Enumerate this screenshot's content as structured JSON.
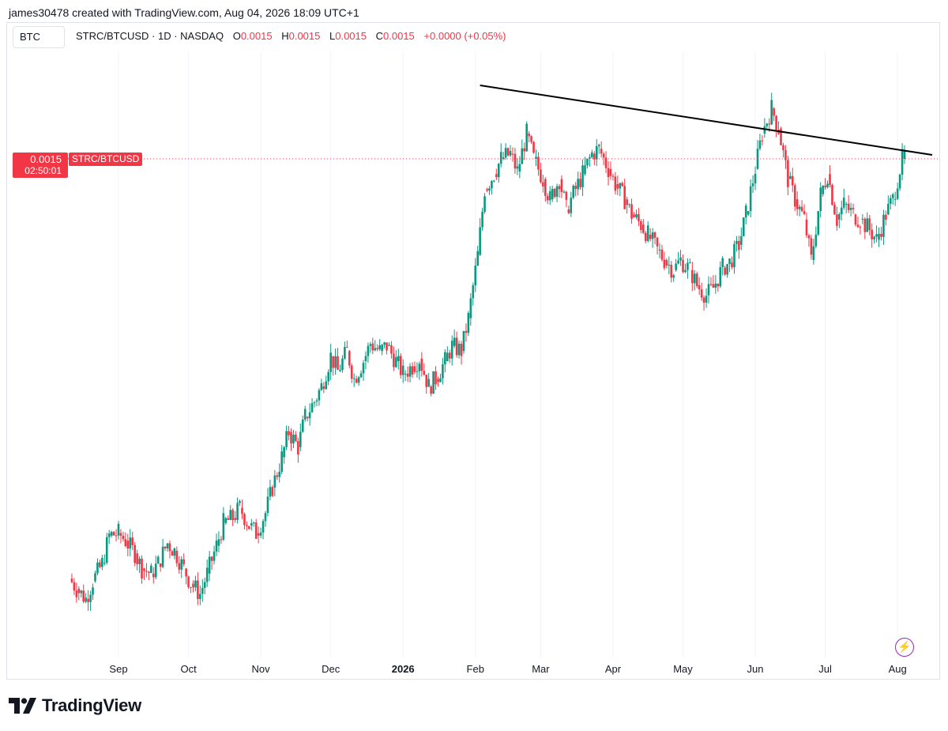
{
  "header": {
    "created_by": "james30478 created with TradingView.com, Aug 04, 2026 18:09 UTC+1"
  },
  "symbol_box": {
    "label": "BTC"
  },
  "legend": {
    "title": "STRC/BTCUSD · 1D · NASDAQ",
    "o_label": "O",
    "o_value": "0.0015",
    "h_label": "H",
    "h_value": "0.0015",
    "l_label": "L",
    "l_value": "0.0015",
    "c_label": "C",
    "c_value": "0.0015",
    "change": "+0.0000 (+0.05%)"
  },
  "price_tag": {
    "price": "0.0015",
    "countdown": "02:50:01",
    "name": "STRC/BTCUSD"
  },
  "colors": {
    "up": "#089981",
    "down": "#f23645",
    "grid": "#f0f3fa",
    "trendline": "#000000"
  },
  "branding": {
    "name": "TradingView",
    "icon": "tradingview-logo-icon"
  },
  "chart_data": {
    "type": "candlestick",
    "title": "STRC/BTCUSD · 1D · NASDAQ",
    "x_tick_labels": [
      "Sep",
      "Oct",
      "Nov",
      "Dec",
      "2026",
      "Feb",
      "Mar",
      "Apr",
      "May",
      "Jun",
      "Jul",
      "Aug"
    ],
    "last_price": 0.0015,
    "trendline": {
      "from": "2026-02-03",
      "to": "2026-08-05"
    },
    "series": [
      {
        "ohlc_close_path": [
          [
            "2025-08-11",
            0.00067
          ],
          [
            "2025-08-14",
            0.00065
          ],
          [
            "2025-08-18",
            0.00063
          ],
          [
            "2025-08-21",
            0.000665
          ],
          [
            "2025-08-25",
            0.0007
          ],
          [
            "2025-08-28",
            0.000755
          ],
          [
            "2025-09-01",
            0.00076
          ],
          [
            "2025-09-04",
            0.000745
          ],
          [
            "2025-09-08",
            0.00072
          ],
          [
            "2025-09-11",
            0.00069
          ],
          [
            "2025-09-15",
            0.00068
          ],
          [
            "2025-09-18",
            0.0007
          ],
          [
            "2025-09-22",
            0.00074
          ],
          [
            "2025-09-25",
            0.000725
          ],
          [
            "2025-09-29",
            0.00069
          ],
          [
            "2025-10-02",
            0.00066
          ],
          [
            "2025-10-06",
            0.00064
          ],
          [
            "2025-10-09",
            0.00068
          ],
          [
            "2025-10-13",
            0.000735
          ],
          [
            "2025-10-16",
            0.00078
          ],
          [
            "2025-10-20",
            0.00079
          ],
          [
            "2025-10-23",
            0.00081
          ],
          [
            "2025-10-27",
            0.000775
          ],
          [
            "2025-10-30",
            0.00076
          ],
          [
            "2025-11-03",
            0.0008
          ],
          [
            "2025-11-06",
            0.00085
          ],
          [
            "2025-11-10",
            0.00091
          ],
          [
            "2025-11-13",
            0.00096
          ],
          [
            "2025-11-17",
            0.00093
          ],
          [
            "2025-11-20",
            0.00099
          ],
          [
            "2025-11-24",
            0.00102
          ],
          [
            "2025-11-27",
            0.00105
          ],
          [
            "2025-12-01",
            0.00111
          ],
          [
            "2025-12-04",
            0.00108
          ],
          [
            "2025-12-08",
            0.00112
          ],
          [
            "2025-12-11",
            0.001065
          ],
          [
            "2025-12-15",
            0.0011
          ],
          [
            "2025-12-18",
            0.001135
          ],
          [
            "2025-12-22",
            0.00112
          ],
          [
            "2025-12-25",
            0.00113
          ],
          [
            "2025-12-29",
            0.0011
          ],
          [
            "2026-01-01",
            0.001075
          ],
          [
            "2026-01-05",
            0.00109
          ],
          [
            "2026-01-08",
            0.001105
          ],
          [
            "2026-01-12",
            0.00105
          ],
          [
            "2026-01-15",
            0.001065
          ],
          [
            "2026-01-19",
            0.0011
          ],
          [
            "2026-01-22",
            0.00113
          ],
          [
            "2026-01-26",
            0.00112
          ],
          [
            "2026-01-29",
            0.001185
          ],
          [
            "2026-02-02",
            0.00131
          ],
          [
            "2026-02-05",
            0.00144
          ],
          [
            "2026-02-09",
            0.00147
          ],
          [
            "2026-02-12",
            0.0015
          ],
          [
            "2026-02-16",
            0.00151
          ],
          [
            "2026-02-19",
            0.001475
          ],
          [
            "2026-02-23",
            0.00155
          ],
          [
            "2026-02-26",
            0.0015
          ],
          [
            "2026-03-02",
            0.00146
          ],
          [
            "2026-03-05",
            0.00142
          ],
          [
            "2026-03-09",
            0.00146
          ],
          [
            "2026-03-12",
            0.0014
          ],
          [
            "2026-03-16",
            0.00144
          ],
          [
            "2026-03-19",
            0.00147
          ],
          [
            "2026-03-23",
            0.00151
          ],
          [
            "2026-03-26",
            0.00152
          ],
          [
            "2026-03-30",
            0.00148
          ],
          [
            "2026-04-02",
            0.00145
          ],
          [
            "2026-04-06",
            0.00142
          ],
          [
            "2026-04-09",
            0.00139
          ],
          [
            "2026-04-13",
            0.00137
          ],
          [
            "2026-04-16",
            0.00135
          ],
          [
            "2026-04-20",
            0.00132
          ],
          [
            "2026-04-23",
            0.0013
          ],
          [
            "2026-04-27",
            0.00128
          ],
          [
            "2026-04-30",
            0.0013
          ],
          [
            "2026-05-04",
            0.00128
          ],
          [
            "2026-05-07",
            0.00125
          ],
          [
            "2026-05-11",
            0.00123
          ],
          [
            "2026-05-14",
            0.001245
          ],
          [
            "2026-05-18",
            0.001285
          ],
          [
            "2026-05-21",
            0.001295
          ],
          [
            "2026-05-25",
            0.00133
          ],
          [
            "2026-05-28",
            0.00139
          ],
          [
            "2026-06-01",
            0.00148
          ],
          [
            "2026-06-04",
            0.00155
          ],
          [
            "2026-06-08",
            0.0016
          ],
          [
            "2026-06-11",
            0.00156
          ],
          [
            "2026-06-15",
            0.00146
          ],
          [
            "2026-06-18",
            0.00142
          ],
          [
            "2026-06-22",
            0.00138
          ],
          [
            "2026-06-25",
            0.0013
          ],
          [
            "2026-06-29",
            0.00143
          ],
          [
            "2026-07-02",
            0.00147
          ],
          [
            "2026-07-06",
            0.00138
          ],
          [
            "2026-07-09",
            0.00141
          ],
          [
            "2026-07-13",
            0.00139
          ],
          [
            "2026-07-16",
            0.00138
          ],
          [
            "2026-07-20",
            0.00136
          ],
          [
            "2026-07-23",
            0.00134
          ],
          [
            "2026-07-27",
            0.00139
          ],
          [
            "2026-07-30",
            0.00142
          ],
          [
            "2026-08-03",
            0.0015
          ],
          [
            "2026-08-04",
            0.001505
          ]
        ]
      }
    ]
  }
}
